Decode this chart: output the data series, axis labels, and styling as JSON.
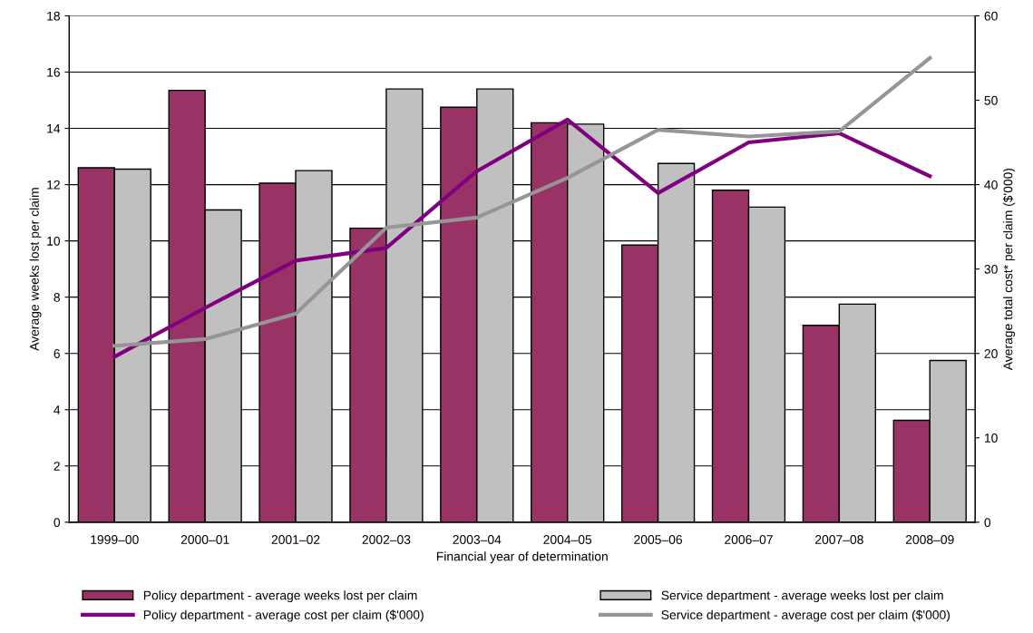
{
  "chart_data": {
    "type": "bar",
    "xlabel": "Financial year of determination",
    "ylabel": "Average weeks lost per claim",
    "y2label": "Average total cost* per claim ($'000)",
    "categories": [
      "1999–00",
      "2000–01",
      "2001–02",
      "2002–03",
      "2003–04",
      "2004–05",
      "2005–06",
      "2006–07",
      "2007–08",
      "2008–09"
    ],
    "series": [
      {
        "name": "Policy department - average weeks lost per claim",
        "color": "#993366",
        "values": [
          12.6,
          15.35,
          12.05,
          10.45,
          14.75,
          14.2,
          9.85,
          11.8,
          7.0,
          3.62
        ]
      },
      {
        "name": "Service department - average weeks lost per claim",
        "color": "#c0c0c0",
        "values": [
          12.55,
          11.1,
          12.5,
          15.4,
          15.4,
          14.15,
          12.75,
          11.2,
          7.75,
          5.75
        ]
      },
      {
        "name": "Policy department - average cost per claim ($'000)",
        "type": "line",
        "axis": "y2",
        "color": "#800080",
        "values": [
          19.6,
          25.4,
          31.0,
          32.5,
          41.6,
          47.7,
          39.0,
          45.0,
          46.1,
          41.0
        ]
      },
      {
        "name": "Service department - average cost per claim ($'000)",
        "type": "line",
        "axis": "y2",
        "color": "#969696",
        "values": [
          20.9,
          21.7,
          24.7,
          34.9,
          36.1,
          40.8,
          46.5,
          45.7,
          46.3,
          55.0
        ]
      }
    ],
    "ylim": [
      0,
      18
    ],
    "yticks": [
      0,
      2,
      4,
      6,
      8,
      10,
      12,
      14,
      16,
      18
    ],
    "y2lim": [
      0,
      60
    ],
    "y2ticks": [
      0,
      10,
      20,
      30,
      40,
      50,
      60
    ],
    "grid": "y",
    "legend": "bottom",
    "marker": "none",
    "line_style": "solid"
  }
}
